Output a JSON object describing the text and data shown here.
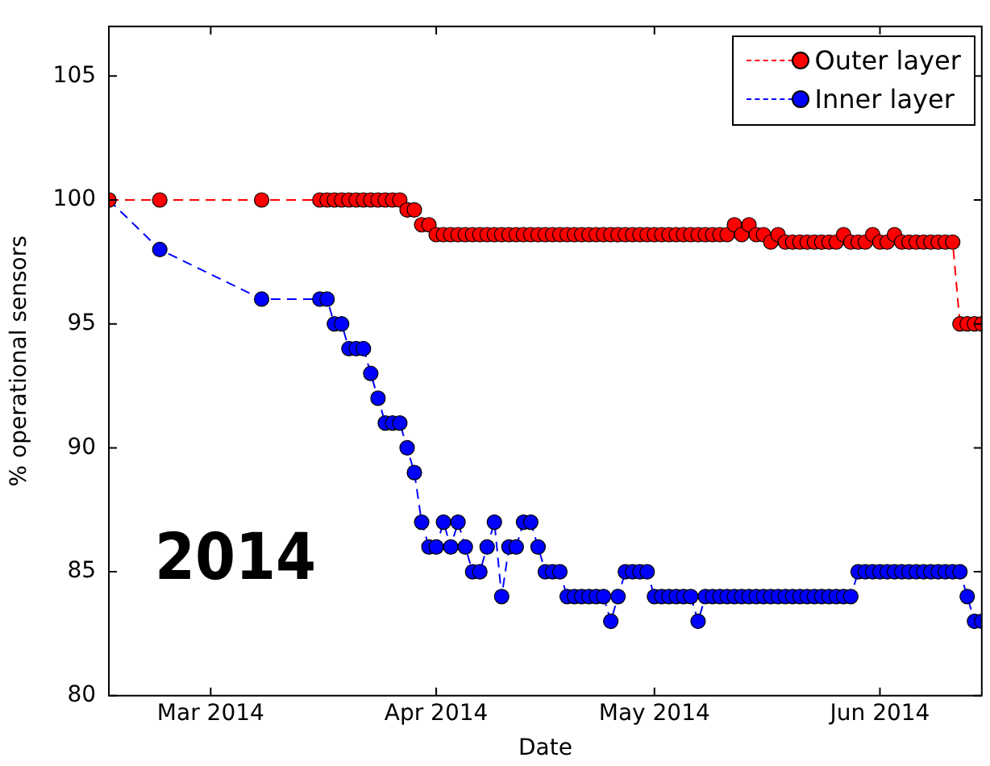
{
  "chart_data": {
    "type": "line",
    "xlabel": "Date",
    "ylabel": "% operational sensors",
    "annotations": [
      "2014"
    ],
    "x": [
      "2014-02-15",
      "2014-02-22",
      "2014-03-08",
      "2014-03-16",
      "2014-03-17",
      "2014-03-18",
      "2014-03-19",
      "2014-03-20",
      "2014-03-21",
      "2014-03-22",
      "2014-03-23",
      "2014-03-24",
      "2014-03-25",
      "2014-03-26",
      "2014-03-27",
      "2014-03-28",
      "2014-03-29",
      "2014-03-30",
      "2014-03-31",
      "2014-04-01",
      "2014-04-02",
      "2014-04-03",
      "2014-04-04",
      "2014-04-05",
      "2014-04-06",
      "2014-04-07",
      "2014-04-08",
      "2014-04-09",
      "2014-04-10",
      "2014-04-11",
      "2014-04-12",
      "2014-04-13",
      "2014-04-14",
      "2014-04-15",
      "2014-04-16",
      "2014-04-17",
      "2014-04-18",
      "2014-04-19",
      "2014-04-20",
      "2014-04-21",
      "2014-04-22",
      "2014-04-23",
      "2014-04-24",
      "2014-04-25",
      "2014-04-26",
      "2014-04-27",
      "2014-04-28",
      "2014-04-29",
      "2014-04-30",
      "2014-05-01",
      "2014-05-02",
      "2014-05-03",
      "2014-05-04",
      "2014-05-05",
      "2014-05-06",
      "2014-05-07",
      "2014-05-08",
      "2014-05-09",
      "2014-05-10",
      "2014-05-11",
      "2014-05-12",
      "2014-05-13",
      "2014-05-14",
      "2014-05-15",
      "2014-05-16",
      "2014-05-17",
      "2014-05-18",
      "2014-05-19",
      "2014-05-20",
      "2014-05-21",
      "2014-05-22",
      "2014-05-23",
      "2014-05-24",
      "2014-05-25",
      "2014-05-26",
      "2014-05-27",
      "2014-05-28",
      "2014-05-29",
      "2014-05-30",
      "2014-05-31",
      "2014-06-01",
      "2014-06-02",
      "2014-06-03",
      "2014-06-04",
      "2014-06-05",
      "2014-06-06",
      "2014-06-07",
      "2014-06-08",
      "2014-06-09",
      "2014-06-10",
      "2014-06-11",
      "2014-06-12",
      "2014-06-13",
      "2014-06-14",
      "2014-06-15"
    ],
    "series": [
      {
        "name": "Outer layer",
        "color": "#ff0000",
        "values": [
          100,
          100,
          100,
          100,
          100,
          100,
          100,
          100,
          100,
          100,
          100,
          100,
          100,
          100,
          100,
          99.6,
          99.6,
          99,
          99,
          98.6,
          98.6,
          98.6,
          98.6,
          98.6,
          98.6,
          98.6,
          98.6,
          98.6,
          98.6,
          98.6,
          98.6,
          98.6,
          98.6,
          98.6,
          98.6,
          98.6,
          98.6,
          98.6,
          98.6,
          98.6,
          98.6,
          98.6,
          98.6,
          98.6,
          98.6,
          98.6,
          98.6,
          98.6,
          98.6,
          98.6,
          98.6,
          98.6,
          98.6,
          98.6,
          98.6,
          98.6,
          98.6,
          98.6,
          98.6,
          98.6,
          99,
          98.6,
          99,
          98.6,
          98.6,
          98.3,
          98.6,
          98.3,
          98.3,
          98.3,
          98.3,
          98.3,
          98.3,
          98.3,
          98.3,
          98.6,
          98.3,
          98.3,
          98.3,
          98.6,
          98.3,
          98.3,
          98.6,
          98.3,
          98.3,
          98.3,
          98.3,
          98.3,
          98.3,
          98.3,
          98.3,
          95,
          95,
          95,
          95
        ]
      },
      {
        "name": "Inner layer",
        "color": "#0000ff",
        "values": [
          100,
          98,
          96,
          96,
          96,
          95,
          95,
          94,
          94,
          94,
          93,
          92,
          91,
          91,
          91,
          90,
          89,
          87,
          86,
          86,
          87,
          86,
          87,
          86,
          85,
          85,
          86,
          87,
          84,
          86,
          86,
          87,
          87,
          86,
          85,
          85,
          85,
          84,
          84,
          84,
          84,
          84,
          84,
          83,
          84,
          85,
          85,
          85,
          85,
          84,
          84,
          84,
          84,
          84,
          84,
          83,
          84,
          84,
          84,
          84,
          84,
          84,
          84,
          84,
          84,
          84,
          84,
          84,
          84,
          84,
          84,
          84,
          84,
          84,
          84,
          84,
          84,
          85,
          85,
          85,
          85,
          85,
          85,
          85,
          85,
          85,
          85,
          85,
          85,
          85,
          85,
          85,
          84,
          83,
          83
        ]
      }
    ],
    "xlim": [
      "2014-02-15",
      "2014-06-15"
    ],
    "xticks": [
      {
        "value": "2014-03-01",
        "label": "Mar 2014"
      },
      {
        "value": "2014-04-01",
        "label": "Apr 2014"
      },
      {
        "value": "2014-05-01",
        "label": "May 2014"
      },
      {
        "value": "2014-06-01",
        "label": "Jun 2014"
      }
    ],
    "ylim": [
      80,
      107
    ],
    "yticks": [
      80,
      85,
      90,
      95,
      100,
      105
    ],
    "grid": false,
    "legend": "top right",
    "marker": "circle",
    "line_style": "dashed"
  }
}
